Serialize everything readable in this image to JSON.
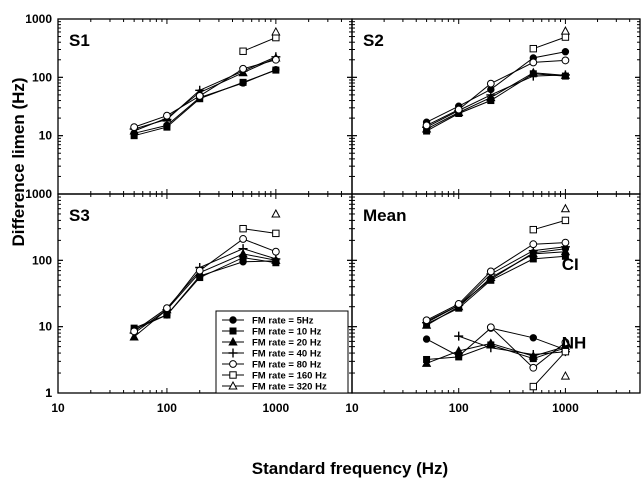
{
  "figure": {
    "xlabel": "Standard frequency (Hz)",
    "ylabel": "Difference limen (Hz)"
  },
  "chart_data": [
    {
      "type": "line",
      "title": "S1",
      "xscale": "log",
      "yscale": "log",
      "xlim": [
        10,
        5000
      ],
      "ylim": [
        1,
        1000
      ],
      "series": [
        {
          "name": "FM rate = 5Hz",
          "marker": "filled-circle",
          "x": [
            50,
            100,
            200,
            500,
            1000
          ],
          "y": [
            11,
            15,
            45,
            80,
            135
          ]
        },
        {
          "name": "FM rate = 10 Hz",
          "marker": "filled-square",
          "x": [
            50,
            100,
            200,
            500,
            1000
          ],
          "y": [
            10,
            14,
            43,
            82,
            133
          ]
        },
        {
          "name": "FM rate = 20 Hz",
          "marker": "filled-triangle",
          "x": [
            50,
            100,
            200,
            500,
            1000
          ],
          "y": [
            12,
            20,
            55,
            120,
            215
          ]
        },
        {
          "name": "FM rate = 40 Hz",
          "marker": "plus",
          "x": [
            50,
            100,
            200,
            500,
            1000
          ],
          "y": [
            13,
            19,
            60,
            128,
            225
          ]
        },
        {
          "name": "FM rate = 80 Hz",
          "marker": "open-circle",
          "x": [
            50,
            100,
            200,
            500,
            1000
          ],
          "y": [
            14,
            22,
            48,
            140,
            200
          ]
        },
        {
          "name": "FM rate = 160 Hz",
          "marker": "open-square",
          "x": [
            500,
            1000
          ],
          "y": [
            280,
            480
          ]
        },
        {
          "name": "FM rate = 320 Hz",
          "marker": "open-triangle",
          "x": [
            1000
          ],
          "y": [
            600
          ]
        }
      ]
    },
    {
      "type": "line",
      "title": "S2",
      "xscale": "log",
      "yscale": "log",
      "xlim": [
        10,
        5000
      ],
      "ylim": [
        1,
        1000
      ],
      "series": [
        {
          "name": "FM rate = 5Hz",
          "marker": "filled-circle",
          "x": [
            50,
            100,
            200,
            500,
            1000
          ],
          "y": [
            17,
            32,
            62,
            215,
            275
          ]
        },
        {
          "name": "FM rate = 10 Hz",
          "marker": "filled-square",
          "x": [
            50,
            100,
            200,
            500,
            1000
          ],
          "y": [
            12,
            24,
            40,
            115,
            105
          ]
        },
        {
          "name": "FM rate = 20 Hz",
          "marker": "filled-triangle",
          "x": [
            50,
            100,
            200,
            500,
            1000
          ],
          "y": [
            13,
            25,
            45,
            120,
            108
          ]
        },
        {
          "name": "FM rate = 40 Hz",
          "marker": "plus",
          "x": [
            50,
            100,
            200,
            500,
            1000
          ],
          "y": [
            14,
            27,
            50,
            105,
            110
          ]
        },
        {
          "name": "FM rate = 80 Hz",
          "marker": "open-circle",
          "x": [
            50,
            100,
            200,
            500,
            1000
          ],
          "y": [
            15,
            28,
            78,
            180,
            195
          ]
        },
        {
          "name": "FM rate = 160 Hz",
          "marker": "open-square",
          "x": [
            500,
            1000
          ],
          "y": [
            310,
            490
          ]
        },
        {
          "name": "FM rate = 320 Hz",
          "marker": "open-triangle",
          "x": [
            1000
          ],
          "y": [
            620
          ]
        }
      ]
    },
    {
      "type": "line",
      "title": "S3",
      "xscale": "log",
      "yscale": "log",
      "xlim": [
        10,
        5000
      ],
      "ylim": [
        1,
        1000
      ],
      "series": [
        {
          "name": "FM rate = 5Hz",
          "marker": "filled-circle",
          "x": [
            50,
            100,
            200,
            500,
            1000
          ],
          "y": [
            9,
            15,
            58,
            95,
            98
          ]
        },
        {
          "name": "FM rate = 10 Hz",
          "marker": "filled-square",
          "x": [
            50,
            100,
            200,
            500,
            1000
          ],
          "y": [
            9.5,
            15,
            55,
            110,
            92
          ]
        },
        {
          "name": "FM rate = 20 Hz",
          "marker": "filled-triangle",
          "x": [
            50,
            100,
            200,
            500,
            1000
          ],
          "y": [
            7,
            18,
            65,
            125,
            100
          ]
        },
        {
          "name": "FM rate = 40 Hz",
          "marker": "plus",
          "x": [
            50,
            100,
            200,
            500,
            1000
          ],
          "y": [
            8,
            18,
            78,
            150,
            105
          ]
        },
        {
          "name": "FM rate = 80 Hz",
          "marker": "open-circle",
          "x": [
            50,
            100,
            200,
            500,
            1000
          ],
          "y": [
            8.5,
            19,
            70,
            210,
            135
          ]
        },
        {
          "name": "FM rate = 160 Hz",
          "marker": "open-square",
          "x": [
            500,
            1000
          ],
          "y": [
            300,
            255
          ]
        },
        {
          "name": "FM rate = 320 Hz",
          "marker": "open-triangle",
          "x": [
            1000
          ],
          "y": [
            500
          ]
        }
      ]
    },
    {
      "type": "line",
      "title": "Mean",
      "xscale": "log",
      "yscale": "log",
      "xlim": [
        10,
        5000
      ],
      "ylim": [
        1,
        1000
      ],
      "annotations": [
        "CI",
        "NH"
      ],
      "series": [
        {
          "name": "FM rate = 5Hz",
          "marker": "filled-circle",
          "x": [
            50,
            100,
            200,
            500,
            1000
          ],
          "y": [
            12,
            21,
            52,
            130,
            150
          ]
        },
        {
          "name": "FM rate = 10 Hz",
          "marker": "filled-square",
          "x": [
            50,
            100,
            200,
            500,
            1000
          ],
          "y": [
            11,
            19,
            50,
            105,
            115
          ]
        },
        {
          "name": "FM rate = 20 Hz",
          "marker": "filled-triangle",
          "x": [
            50,
            100,
            200,
            500,
            1000
          ],
          "y": [
            10.5,
            20,
            55,
            125,
            135
          ]
        },
        {
          "name": "FM rate = 40 Hz",
          "marker": "plus",
          "x": [
            50,
            100,
            200,
            500,
            1000
          ],
          "y": [
            11.5,
            21,
            62,
            140,
            160
          ]
        },
        {
          "name": "FM rate = 80 Hz",
          "marker": "open-circle",
          "x": [
            50,
            100,
            200,
            500,
            1000
          ],
          "y": [
            12.5,
            22,
            68,
            175,
            185
          ]
        },
        {
          "name": "FM rate = 160 Hz",
          "marker": "open-square",
          "x": [
            500,
            1000
          ],
          "y": [
            290,
            400
          ]
        },
        {
          "name": "FM rate = 320 Hz",
          "marker": "open-triangle",
          "x": [
            1000
          ],
          "y": [
            600
          ]
        },
        {
          "name": "FM rate = 5Hz",
          "marker": "filled-circle",
          "x": [
            50,
            100,
            200,
            500,
            1000
          ],
          "y": [
            6.5,
            3.6,
            9.5,
            6.8,
            4.5
          ]
        },
        {
          "name": "FM rate = 10 Hz",
          "marker": "filled-square",
          "x": [
            50,
            100,
            200,
            500,
            1000
          ],
          "y": [
            3.2,
            3.5,
            5.3,
            3.3,
            4.8
          ]
        },
        {
          "name": "FM rate = 20 Hz",
          "marker": "filled-triangle",
          "x": [
            50,
            100,
            200,
            500,
            1000
          ],
          "y": [
            2.8,
            4.3,
            5.6,
            3.6,
            5
          ]
        },
        {
          "name": "FM rate = 40 Hz",
          "marker": "plus",
          "x": [
            100,
            200,
            500,
            1000
          ],
          "y": [
            7.2,
            4.8,
            3.8,
            4.2
          ]
        },
        {
          "name": "FM rate = 80 Hz",
          "marker": "open-circle",
          "x": [
            200,
            500,
            1000
          ],
          "y": [
            9.8,
            2.4,
            5.8
          ]
        },
        {
          "name": "FM rate = 160 Hz",
          "marker": "open-square",
          "x": [
            500,
            1000
          ],
          "y": [
            1.25,
            4.2
          ]
        },
        {
          "name": "FM rate = 320 Hz",
          "marker": "open-triangle",
          "x": [
            1000
          ],
          "y": [
            1.8
          ]
        }
      ]
    }
  ],
  "legend": {
    "placement": "inside bottom-right of panel S3",
    "entries": [
      {
        "label": "FM rate = 5Hz",
        "marker": "filled-circle"
      },
      {
        "label": "FM rate = 10 Hz",
        "marker": "filled-square"
      },
      {
        "label": "FM rate = 20 Hz",
        "marker": "filled-triangle"
      },
      {
        "label": "FM rate = 40 Hz",
        "marker": "plus"
      },
      {
        "label": "FM rate = 80 Hz",
        "marker": "open-circle"
      },
      {
        "label": "FM rate = 160 Hz",
        "marker": "open-square"
      },
      {
        "label": "FM rate = 320 Hz",
        "marker": "open-triangle"
      }
    ]
  },
  "ticks": {
    "x": [
      {
        "value": 10,
        "label": "10"
      },
      {
        "value": 100,
        "label": "100"
      },
      {
        "value": 1000,
        "label": "1000"
      }
    ],
    "y": [
      {
        "value": 1,
        "label": "1"
      },
      {
        "value": 10,
        "label": "10"
      },
      {
        "value": 100,
        "label": "100"
      },
      {
        "value": 1000,
        "label": "1000"
      }
    ]
  }
}
